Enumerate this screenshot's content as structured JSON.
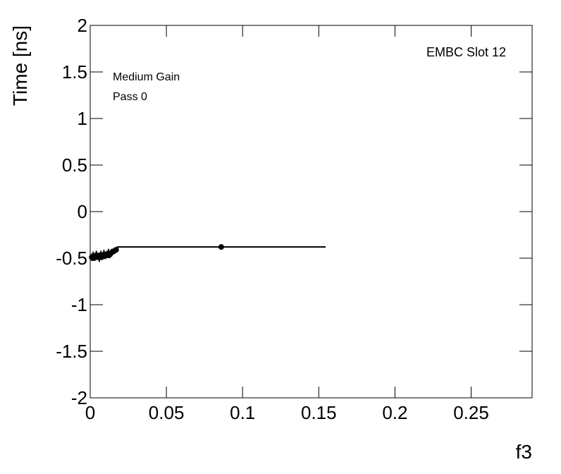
{
  "chart_data": {
    "type": "scatter",
    "x_label": "f3",
    "y_label": "Time [ns]",
    "annotations": [
      "EMBC Slot 12",
      "Medium Gain",
      "Pass 0"
    ],
    "xlim": [
      0,
      0.29
    ],
    "ylim": [
      -2,
      2
    ],
    "xticks": [
      0,
      0.05,
      0.1,
      0.15,
      0.2,
      0.25
    ],
    "yticks": [
      -2,
      -1.5,
      -1,
      -0.5,
      0,
      0.5,
      1,
      1.5,
      2
    ],
    "series": [
      {
        "color": "#000000",
        "x": [
          0.001,
          0.002,
          0.003,
          0.004,
          0.005,
          0.006,
          0.007,
          0.008,
          0.009,
          0.01,
          0.011,
          0.012,
          0.013,
          0.014,
          0.015,
          0.016,
          0.017,
          0.086
        ],
        "values": [
          -0.49,
          -0.48,
          -0.49,
          -0.47,
          -0.48,
          -0.49,
          -0.47,
          -0.48,
          -0.46,
          -0.47,
          -0.46,
          -0.45,
          -0.46,
          -0.44,
          -0.43,
          -0.42,
          -0.41,
          -0.38
        ],
        "xerr": [
          0.001,
          0.001,
          0.001,
          0.001,
          0.001,
          0.001,
          0.001,
          0.001,
          0.001,
          0.001,
          0.001,
          0.001,
          0.001,
          0.001,
          0.001,
          0.001,
          0.001,
          0.0685
        ],
        "yerr": [
          0.04,
          0.05,
          0.04,
          0.05,
          0.04,
          0.05,
          0.05,
          0.04,
          0.05,
          0.04,
          0.04,
          0.05,
          0.04,
          0.04,
          0.03,
          0.03,
          0.02,
          0.005
        ]
      }
    ]
  }
}
